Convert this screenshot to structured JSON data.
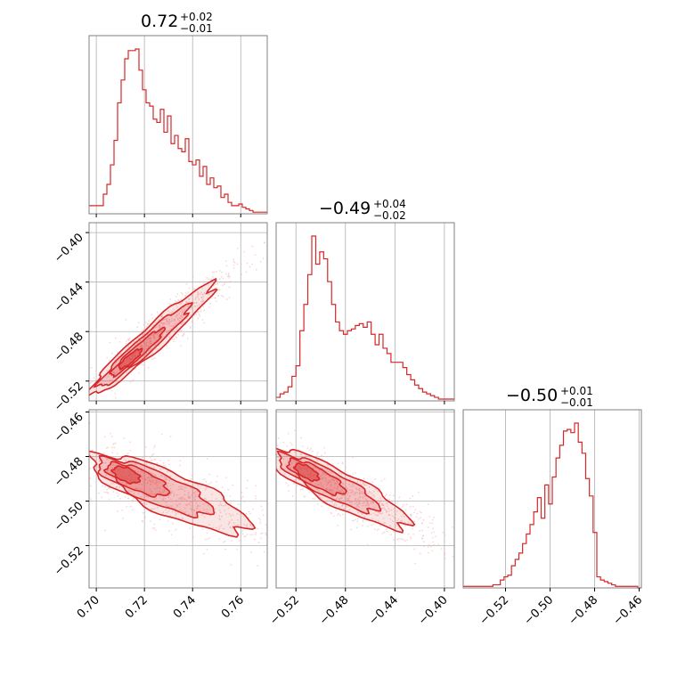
{
  "chart_data": {
    "type": "corner",
    "color": "#d62728",
    "light_color": "#f4b6b7",
    "grid": true,
    "parameters": [
      {
        "median_text": "0.72",
        "plus_text": "+0.02",
        "minus_text": "−0.01",
        "range": [
          0.697,
          0.771
        ],
        "ticks": [
          0.7,
          0.72,
          0.74,
          0.76
        ],
        "tick_labels": [
          "0.70",
          "0.72",
          "0.74",
          "0.76"
        ],
        "hist_x_start": 0.697,
        "hist_x_end": 0.771,
        "hist_counts": [
          5,
          5,
          5,
          5,
          12,
          18,
          30,
          45,
          68,
          82,
          95,
          100,
          100,
          101,
          88,
          76,
          68,
          66,
          58,
          56,
          64,
          50,
          60,
          43,
          48,
          40,
          38,
          46,
          32,
          30,
          33,
          23,
          29,
          18,
          22,
          16,
          17,
          10,
          12,
          7,
          5,
          5,
          6,
          4,
          3,
          2,
          1,
          1,
          1,
          1
        ]
      },
      {
        "median_text": "−0.49",
        "plus_text": "+0.04",
        "minus_text": "−0.02",
        "range": [
          -0.536,
          -0.392
        ],
        "ticks": [
          -0.52,
          -0.48,
          -0.44,
          -0.4
        ],
        "tick_labels": [
          "−0.52",
          "−0.48",
          "−0.44",
          "−0.40"
        ],
        "hist_x_start": -0.536,
        "hist_x_end": -0.392,
        "hist_counts": [
          2,
          4,
          5,
          8,
          14,
          20,
          40,
          55,
          72,
          94,
          78,
          85,
          81,
          68,
          55,
          45,
          40,
          38,
          40,
          41,
          43,
          44,
          42,
          45,
          38,
          32,
          38,
          30,
          27,
          22,
          22,
          22,
          19,
          15,
          12,
          9,
          7,
          5,
          4,
          3,
          2,
          1,
          1,
          1,
          1
        ]
      },
      {
        "median_text": "−0.50",
        "plus_text": "+0.01",
        "minus_text": "−0.01",
        "range": [
          -0.539,
          -0.459
        ],
        "ticks": [
          -0.52,
          -0.5,
          -0.48,
          -0.46
        ],
        "tick_labels": [
          "−0.52",
          "−0.50",
          "−0.48",
          "−0.46"
        ],
        "hist_x_start": -0.539,
        "hist_x_end": -0.459,
        "hist_counts": [
          1,
          1,
          1,
          1,
          1,
          1,
          1,
          1,
          2,
          2,
          5,
          7,
          8,
          14,
          18,
          22,
          28,
          34,
          40,
          48,
          57,
          44,
          65,
          53,
          70,
          82,
          90,
          99,
          100,
          98,
          104,
          92,
          85,
          69,
          58,
          35,
          7,
          5,
          4,
          3,
          2,
          1,
          1,
          1,
          1,
          1,
          1,
          0
        ]
      }
    ]
  }
}
